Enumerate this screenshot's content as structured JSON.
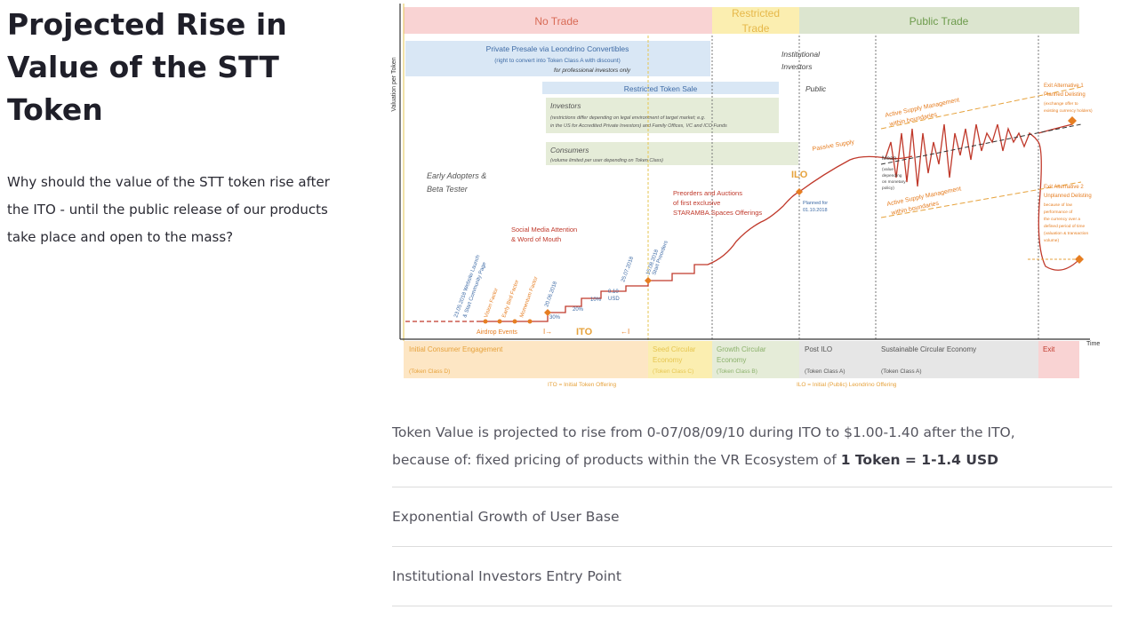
{
  "heading": "Projected Rise in Value of the STT Token",
  "intro": "Why should the value of the STT token rise after the ITO - until the public release of our products take place and open to the mass?",
  "main_text": {
    "line1": "Token Value is projected to rise from 0-07/08/09/10 during ITO to $1.00-1.40 after the ITO,",
    "line2_prefix": "because of: fixed pricing of products within the VR Ecosystem of ",
    "line2_bold": "1 Token = 1-1.4 USD"
  },
  "accordion": [
    {
      "label": "Exponential Growth of User Base"
    },
    {
      "label": "Institutional Investors Entry Point"
    }
  ],
  "diagram": {
    "y_axis_label": "Valuation per Token",
    "x_axis_label": "Time",
    "phases": [
      "No Trade",
      "Restricted Trade",
      "Public Trade"
    ],
    "presale_title": "Private Presale via Leondrino Convertibles",
    "presale_sub1": "(right to convert into Token Class A with discount)",
    "presale_sub2": "for professional investors only",
    "institutional": "Institutional Investors",
    "restricted_sale": "Restricted Token Sale",
    "public": "Public",
    "investors_title": "Investors",
    "investors_sub1": "(restrictions differ depending on legal environment of target market; e.g.",
    "investors_sub2": "in the US for Accredited Private Investors) and Family Offices, VC and ICO Funds",
    "consumers_title": "Consumers",
    "consumers_sub": "(volume limited per user depending on Token Class)",
    "early_adopters": "Early Adopters & Beta Tester",
    "social_media": "Social Media Attention & Word of Mouth",
    "preorders": "Preorders and Auctions of first exclusive STARAMBA.Spaces Offerings",
    "ilo": "ILO",
    "planned": "Planned for 01.10.2018",
    "passive_supply": "Passive Supply",
    "active_supply": "Active Supply Management within boundaries",
    "mean": "Mean",
    "mean_sub": "(value depending on monetary policy)",
    "exit1_title": "Exit Alternative 1 Planned Delisting",
    "exit1_sub": "(exchange offer to existing currency holders)",
    "exit2_title": "Exit Alternative 2 Unplanned Delisting",
    "exit2_sub": "because of low performance of the currency over a defined period of time (valuation & transaction volume)",
    "milestones": [
      "23.05.2018 Website Launch & Start Community Page",
      "Vision Factor",
      "Early Bird Factor",
      "Momentum Factor",
      "20.06.2018",
      "25.07.2018",
      "15.08.2018 Start Preorders"
    ],
    "steps": [
      "0.07 USD / 30%",
      "20%",
      "10%",
      "0.10 USD"
    ],
    "airdrop": "Airdrop Events",
    "ito": "ITO",
    "ito_note": "ITO = Initial Token Offering",
    "ilo_note": "ILO = Initial (Public) Leondrino Offering",
    "bottom_phases": [
      {
        "title": "Initial Consumer Engagement",
        "sub": "(Token Class D)"
      },
      {
        "title": "Seed Circular Economy",
        "sub": "(Token Class C)"
      },
      {
        "title": "Growth Circular Economy",
        "sub": "(Token Class B)"
      },
      {
        "title": "Post ILO",
        "sub": "(Token Class A)"
      },
      {
        "title": "Sustainable Circular Economy",
        "sub": "(Token Class A)"
      },
      {
        "title": "Exit",
        "sub": ""
      }
    ]
  }
}
